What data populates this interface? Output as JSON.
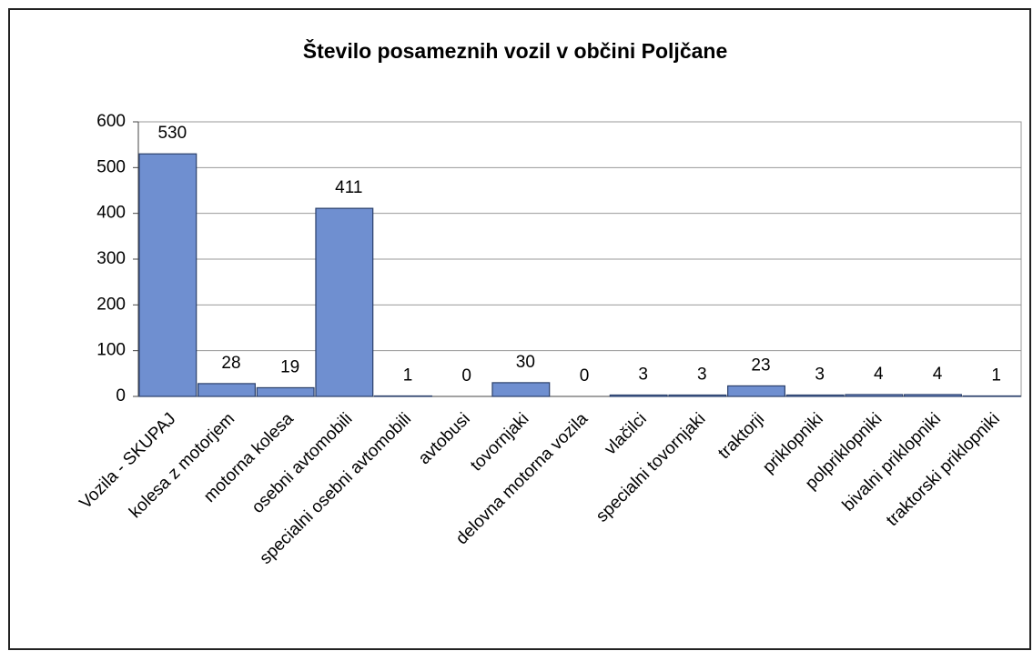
{
  "chart_data": {
    "type": "bar",
    "title": "Število posameznih vozil v občini Poljčane",
    "categories": [
      "Vozila - SKUPAJ",
      "kolesa z motorjem",
      "motorna kolesa",
      "osebni avtomobili",
      "specialni osebni avtomobili",
      "avtobusi",
      "tovornjaki",
      "delovna motorna vozila",
      "vlačilci",
      "specialni tovornjaki",
      "traktorji",
      "priklopniki",
      "polpriklopniki",
      "bivalni priklopniki",
      "traktorski priklopniki"
    ],
    "values": [
      530,
      28,
      19,
      411,
      1,
      0,
      30,
      0,
      3,
      3,
      23,
      3,
      4,
      4,
      1
    ],
    "color": "#6f8fd0",
    "ylim": [
      0,
      600
    ],
    "yticks": [
      0,
      100,
      200,
      300,
      400,
      500,
      600
    ],
    "grid": true
  }
}
